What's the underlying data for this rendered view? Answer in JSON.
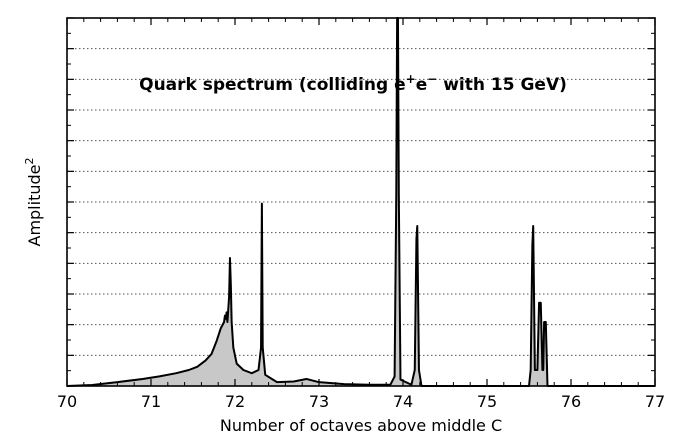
{
  "chart_data": {
    "type": "area",
    "title_parts": [
      "Quark spectrum (colliding e",
      "+",
      "e",
      "−",
      " with 15 GeV)"
    ],
    "xlabel": "Number of octaves above middle C",
    "ylabel_base": "Amplitude",
    "ylabel_sup": "2",
    "xlim": [
      70,
      77
    ],
    "ylim": [
      0,
      1.15
    ],
    "xticks": [
      "70",
      "71",
      "72",
      "73",
      "74",
      "75",
      "76",
      "77"
    ],
    "grid": "horizontal-dotted",
    "legend": "none",
    "fill_color": "#c8c8c8",
    "line_color": "#000000",
    "series": [
      {
        "values": [
          [
            70.0,
            0.0
          ],
          [
            70.3,
            0.003
          ],
          [
            70.6,
            0.012
          ],
          [
            70.9,
            0.022
          ],
          [
            71.1,
            0.03
          ],
          [
            71.3,
            0.04
          ],
          [
            71.45,
            0.05
          ],
          [
            71.55,
            0.06
          ],
          [
            71.65,
            0.08
          ],
          [
            71.72,
            0.1
          ],
          [
            71.78,
            0.14
          ],
          [
            71.83,
            0.18
          ],
          [
            71.87,
            0.2
          ],
          [
            71.88,
            0.22
          ],
          [
            71.89,
            0.21
          ],
          [
            71.9,
            0.23
          ],
          [
            71.91,
            0.2
          ],
          [
            71.93,
            0.28
          ],
          [
            71.94,
            0.4
          ],
          [
            71.95,
            0.32
          ],
          [
            71.96,
            0.2
          ],
          [
            71.98,
            0.12
          ],
          [
            72.02,
            0.07
          ],
          [
            72.1,
            0.05
          ],
          [
            72.2,
            0.04
          ],
          [
            72.28,
            0.05
          ],
          [
            72.31,
            0.12
          ],
          [
            72.32,
            0.57
          ],
          [
            72.33,
            0.12
          ],
          [
            72.36,
            0.035
          ],
          [
            72.5,
            0.012
          ],
          [
            72.7,
            0.014
          ],
          [
            72.85,
            0.022
          ],
          [
            73.0,
            0.012
          ],
          [
            73.3,
            0.006
          ],
          [
            73.6,
            0.004
          ],
          [
            73.85,
            0.004
          ],
          [
            73.9,
            0.03
          ],
          [
            73.92,
            0.6
          ],
          [
            73.93,
            1.15
          ],
          [
            73.94,
            1.15
          ],
          [
            73.95,
            0.6
          ],
          [
            73.97,
            0.02
          ],
          [
            74.1,
            0.004
          ],
          [
            74.14,
            0.05
          ],
          [
            74.16,
            0.46
          ],
          [
            74.17,
            0.5
          ],
          [
            74.19,
            0.05
          ],
          [
            74.22,
            0.0
          ],
          [
            75.5,
            0.0
          ],
          [
            75.52,
            0.05
          ],
          [
            75.54,
            0.44
          ],
          [
            75.55,
            0.5
          ],
          [
            75.57,
            0.05
          ],
          [
            75.6,
            0.05
          ],
          [
            75.62,
            0.26
          ],
          [
            75.64,
            0.26
          ],
          [
            75.66,
            0.05
          ],
          [
            75.67,
            0.05
          ],
          [
            75.68,
            0.2
          ],
          [
            75.7,
            0.2
          ],
          [
            75.72,
            0.0
          ],
          [
            77.0,
            0.0
          ]
        ]
      }
    ]
  }
}
